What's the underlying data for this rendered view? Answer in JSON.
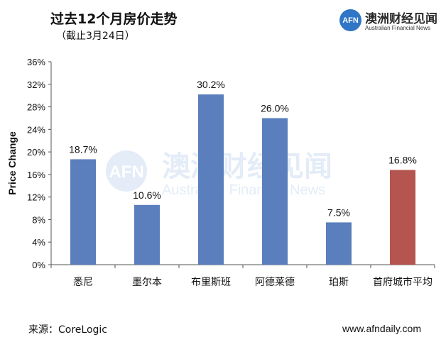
{
  "header": {
    "title": "过去12个月房价走势",
    "subtitle": "（截止3月24日）"
  },
  "logo": {
    "mark": "AFN",
    "name_cn": "澳洲财经见闻",
    "name_en": "Australian Financial News",
    "icon": "afn-logo-icon"
  },
  "watermark": {
    "mark": "AFN",
    "name_cn": "澳洲财经见闻",
    "name_en": "Australian Financial News"
  },
  "footer": {
    "source": "来源：CoreLogic",
    "website": "www.afndaily.com"
  },
  "colors": {
    "city_bar": "#5a7fbc",
    "average_bar": "#b5554f",
    "logo_blue": "#2f76c6"
  },
  "chart_data": {
    "type": "bar",
    "title": "过去12个月房价走势",
    "subtitle": "（截止3月24日）",
    "xlabel": "",
    "ylabel": "Price Change",
    "ylim": [
      0,
      36
    ],
    "y_ticks": [
      "0%",
      "4%",
      "8%",
      "12%",
      "16%",
      "20%",
      "24%",
      "28%",
      "32%",
      "36%"
    ],
    "categories": [
      "悉尼",
      "墨尔本",
      "布里斯班",
      "阿德莱德",
      "珀斯",
      "首府城市平均"
    ],
    "values": [
      18.7,
      10.6,
      30.2,
      26.0,
      7.5,
      16.8
    ],
    "data_labels": [
      "18.7%",
      "10.6%",
      "30.2%",
      "26.0%",
      "7.5%",
      "16.8%"
    ],
    "highlight_index": 5,
    "grid": false,
    "legend": "none"
  }
}
